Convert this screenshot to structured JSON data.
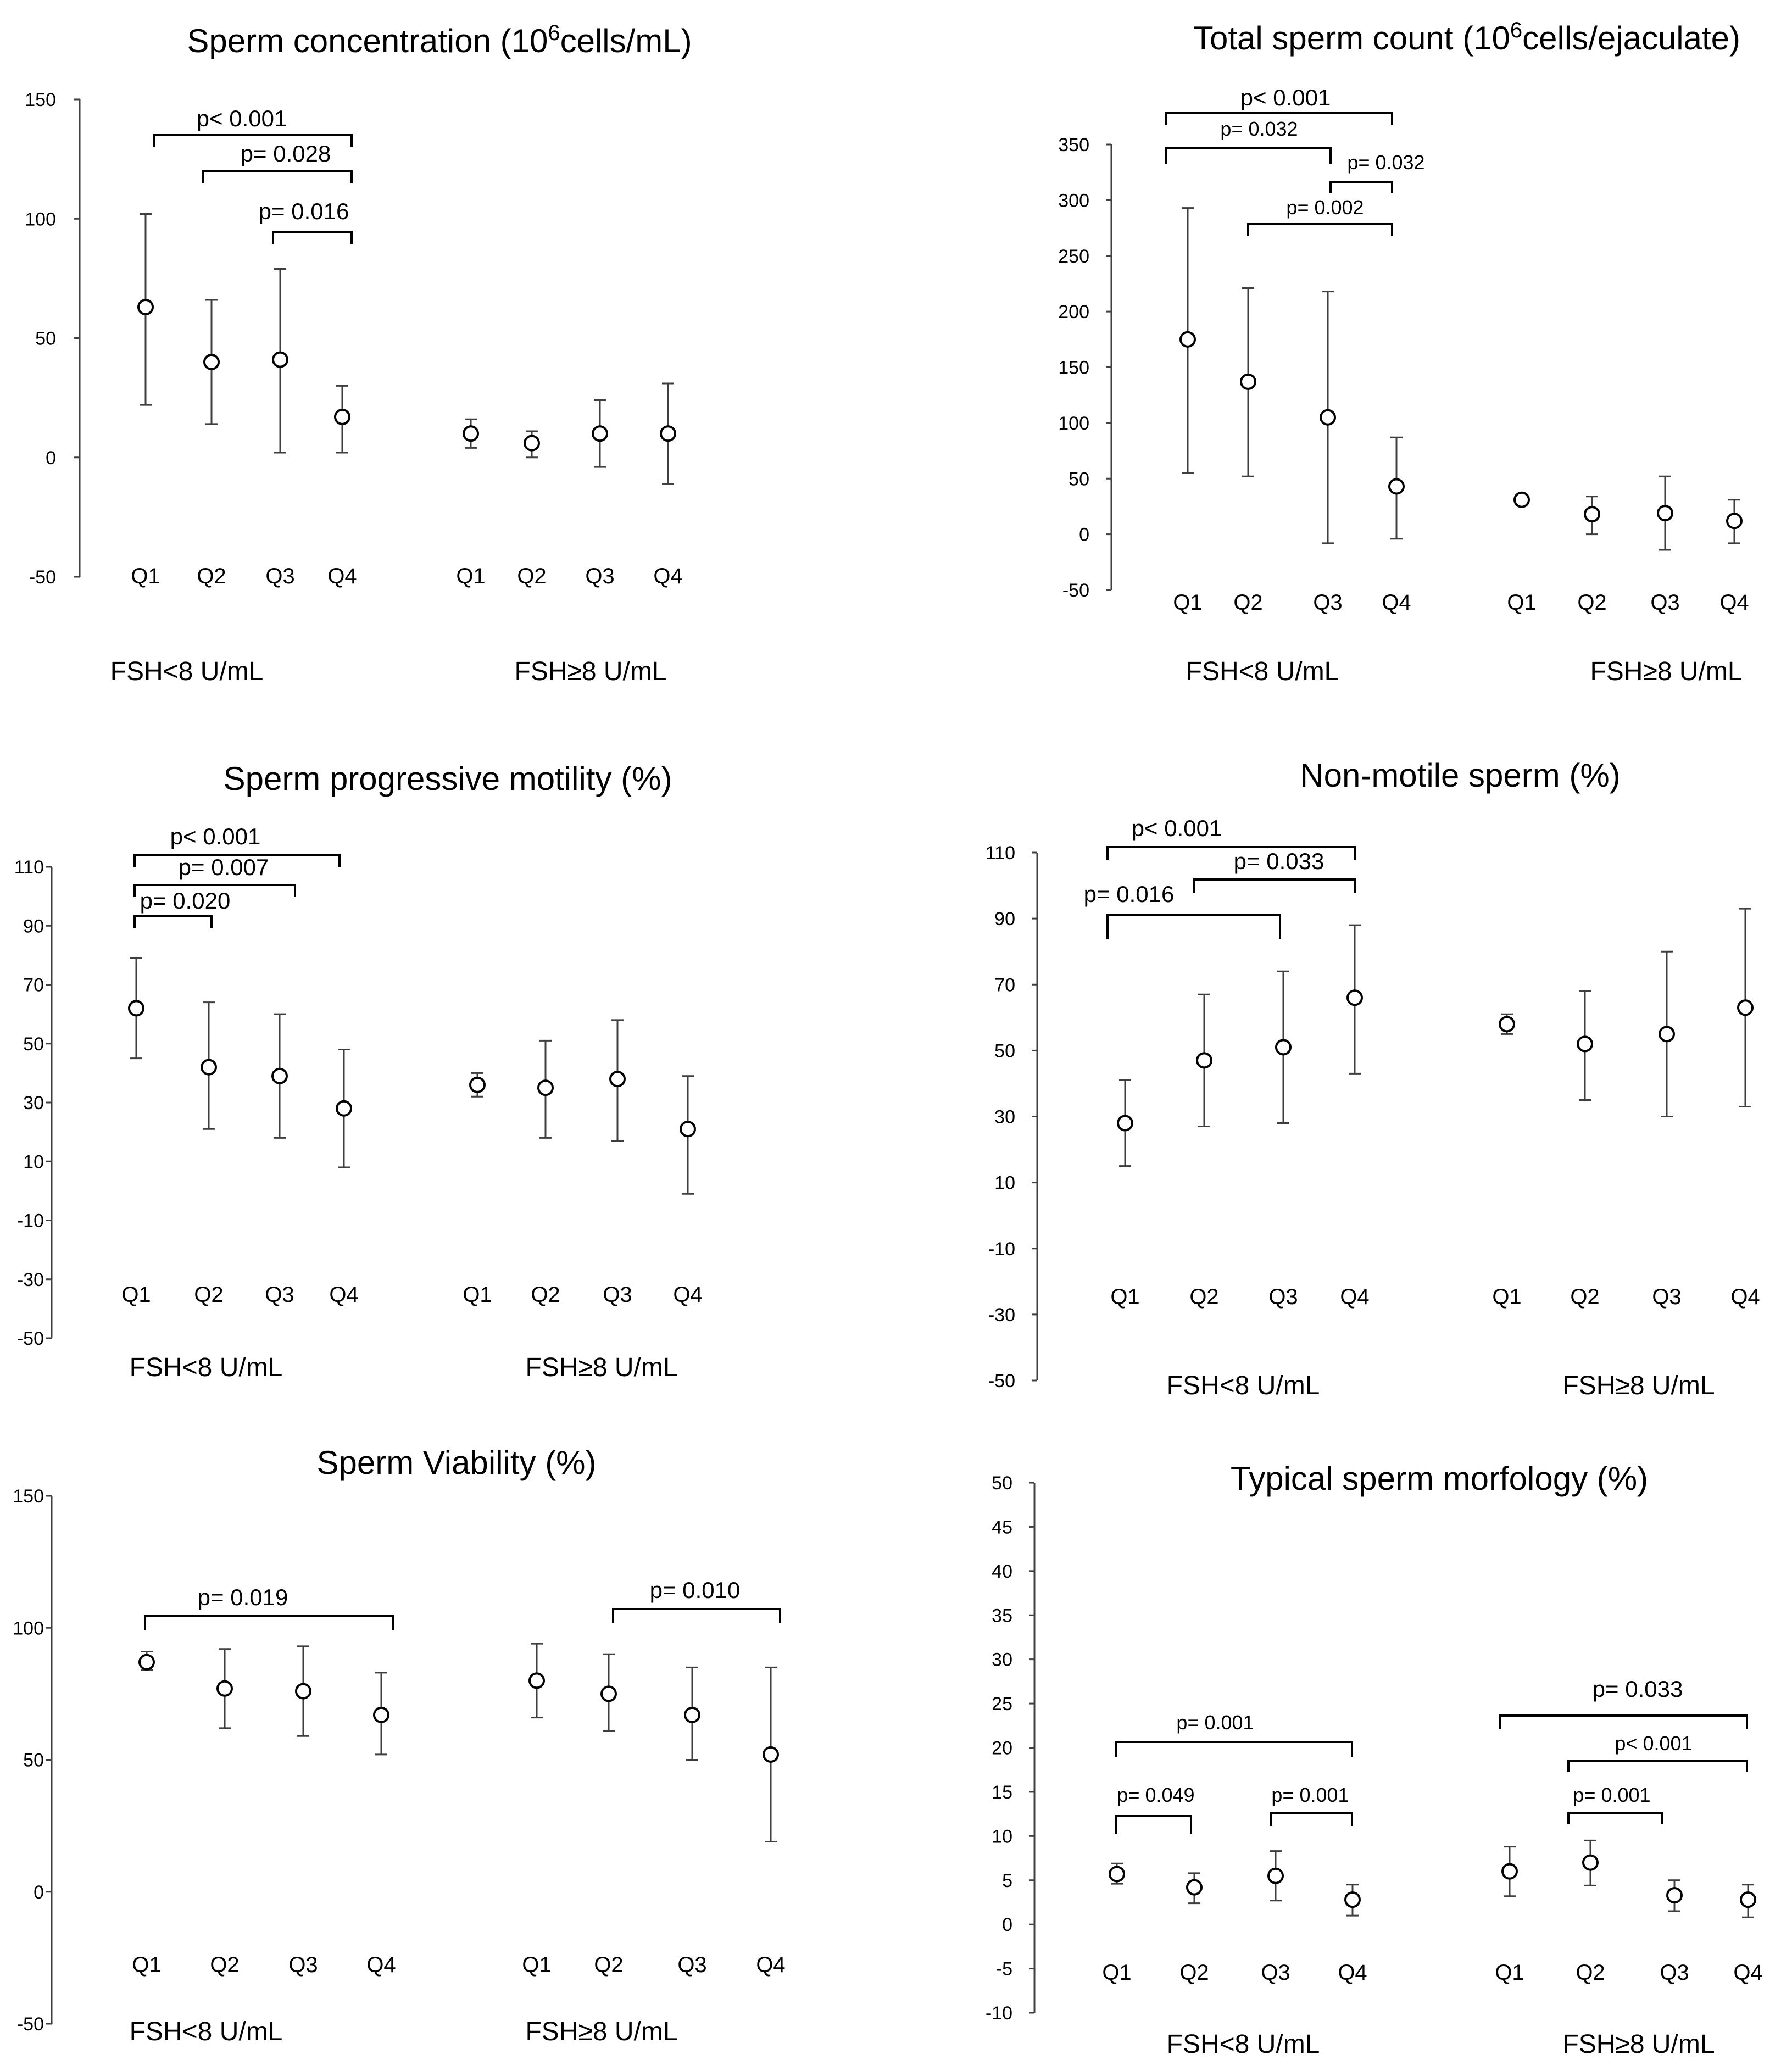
{
  "figure": {
    "colors": {
      "ink": "#000000",
      "axis": "#404040",
      "errorbar": "#3f3f3f",
      "marker_fill": "#ffffff",
      "background": "#ffffff"
    }
  },
  "chart_data": [
    {
      "id": "conc",
      "type": "scatter",
      "title": "Sperm concentration (10⁶cells/mL)",
      "xlabel": "",
      "ylabel": "",
      "ylim": [
        -50,
        150
      ],
      "yticks": [
        -50,
        0,
        50,
        100,
        150
      ],
      "grid": false,
      "groups": [
        {
          "label": "FSH<8 U/mL",
          "categories": [
            "Q1",
            "Q2",
            "Q3",
            "Q4"
          ],
          "mean": [
            63,
            40,
            41,
            17
          ],
          "lower": [
            22,
            14,
            2,
            2
          ],
          "upper": [
            102,
            66,
            79,
            30
          ]
        },
        {
          "label": "FSH≥8 U/mL",
          "categories": [
            "Q1",
            "Q2",
            "Q3",
            "Q4"
          ],
          "mean": [
            10,
            6,
            10,
            10
          ],
          "lower": [
            4,
            0,
            -4,
            -11
          ],
          "upper": [
            16,
            11,
            24,
            31
          ]
        }
      ],
      "comparisons": [
        {
          "text": "p< 0.001",
          "size": "normal"
        },
        {
          "text": "p= 0.028",
          "size": "normal"
        },
        {
          "text": "p= 0.016",
          "size": "normal"
        }
      ]
    },
    {
      "id": "total",
      "type": "scatter",
      "title": "Total sperm count (10⁶cells/ejaculate)",
      "xlabel": "",
      "ylabel": "",
      "ylim": [
        -50,
        350
      ],
      "yticks": [
        -50,
        0,
        50,
        100,
        150,
        200,
        250,
        300,
        350
      ],
      "grid": false,
      "groups": [
        {
          "label": "FSH<8 U/mL",
          "categories": [
            "Q1",
            "Q2",
            "Q3",
            "Q4"
          ],
          "mean": [
            175,
            137,
            105,
            43
          ],
          "lower": [
            55,
            52,
            -8,
            -4
          ],
          "upper": [
            293,
            221,
            218,
            87
          ]
        },
        {
          "label": "FSH≥8 U/mL",
          "categories": [
            "Q1",
            "Q2",
            "Q3",
            "Q4"
          ],
          "mean": [
            31,
            18,
            19,
            12
          ],
          "lower": [
            31,
            0,
            -14,
            -8
          ],
          "upper": [
            31,
            34,
            52,
            31
          ]
        }
      ],
      "comparisons": [
        {
          "text": "p< 0.001",
          "size": "normal"
        },
        {
          "text": "p= 0.032",
          "size": "small"
        },
        {
          "text": "p= 0.032",
          "size": "small"
        },
        {
          "text": "p= 0.002",
          "size": "small"
        }
      ]
    },
    {
      "id": "prog",
      "type": "scatter",
      "title": "Sperm progressive motility (%)",
      "xlabel": "",
      "ylabel": "",
      "ylim": [
        -50,
        110
      ],
      "yticks": [
        -50,
        -30,
        -10,
        10,
        30,
        50,
        70,
        90,
        110
      ],
      "grid": false,
      "groups": [
        {
          "label": "FSH<8 U/mL",
          "categories": [
            "Q1",
            "Q2",
            "Q3",
            "Q4"
          ],
          "mean": [
            62,
            42,
            39,
            28
          ],
          "lower": [
            45,
            21,
            18,
            8
          ],
          "upper": [
            79,
            64,
            60,
            48
          ]
        },
        {
          "label": "FSH≥8 U/mL",
          "categories": [
            "Q1",
            "Q2",
            "Q3",
            "Q4"
          ],
          "mean": [
            36,
            35,
            38,
            21
          ],
          "lower": [
            32,
            18,
            17,
            -1
          ],
          "upper": [
            40,
            51,
            58,
            39
          ]
        }
      ],
      "comparisons": [
        {
          "text": "p< 0.001",
          "size": "normal"
        },
        {
          "text": "p= 0.007",
          "size": "normal"
        },
        {
          "text": "p= 0.020",
          "size": "normal"
        }
      ]
    },
    {
      "id": "nonmot",
      "type": "scatter",
      "title": "Non-motile sperm (%)",
      "xlabel": "",
      "ylabel": "",
      "ylim": [
        -50,
        110
      ],
      "yticks": [
        -50,
        -30,
        -10,
        10,
        30,
        50,
        70,
        90,
        110
      ],
      "grid": false,
      "groups": [
        {
          "label": "FSH<8 U/mL",
          "categories": [
            "Q1",
            "Q2",
            "Q3",
            "Q4"
          ],
          "mean": [
            28,
            47,
            51,
            66
          ],
          "lower": [
            15,
            27,
            28,
            43
          ],
          "upper": [
            41,
            67,
            74,
            88
          ]
        },
        {
          "label": "FSH≥8 U/mL",
          "categories": [
            "Q1",
            "Q2",
            "Q3",
            "Q4"
          ],
          "mean": [
            58,
            52,
            55,
            63
          ],
          "lower": [
            55,
            35,
            30,
            33
          ],
          "upper": [
            61,
            68,
            80,
            93
          ]
        }
      ],
      "comparisons": [
        {
          "text": "p< 0.001",
          "size": "normal"
        },
        {
          "text": "p= 0.033",
          "size": "normal"
        },
        {
          "text": "p= 0.016",
          "size": "normal"
        }
      ]
    },
    {
      "id": "viab",
      "type": "scatter",
      "title": "Sperm Viability (%)",
      "xlabel": "",
      "ylabel": "",
      "ylim": [
        -50,
        150
      ],
      "yticks": [
        -50,
        0,
        50,
        100,
        150
      ],
      "grid": false,
      "groups": [
        {
          "label": "FSH<8 U/mL",
          "categories": [
            "Q1",
            "Q2",
            "Q3",
            "Q4"
          ],
          "mean": [
            87,
            77,
            76,
            67
          ],
          "lower": [
            84,
            62,
            59,
            52
          ],
          "upper": [
            91,
            92,
            93,
            83
          ]
        },
        {
          "label": "FSH≥8 U/mL",
          "categories": [
            "Q1",
            "Q2",
            "Q3",
            "Q4"
          ],
          "mean": [
            80,
            75,
            67,
            52
          ],
          "lower": [
            66,
            61,
            50,
            19
          ],
          "upper": [
            94,
            90,
            85,
            85
          ]
        }
      ],
      "comparisons": [
        {
          "text": "p= 0.019",
          "size": "normal"
        },
        {
          "text": "p= 0.010",
          "size": "normal"
        }
      ]
    },
    {
      "id": "morph",
      "type": "scatter",
      "title": "Typical sperm morfology (%)",
      "xlabel": "",
      "ylabel": "",
      "ylim": [
        -10,
        50
      ],
      "yticks": [
        -10,
        -5,
        0,
        5,
        10,
        15,
        20,
        25,
        30,
        35,
        40,
        45,
        50
      ],
      "grid": false,
      "groups": [
        {
          "label": "FSH<8 U/mL",
          "categories": [
            "Q1",
            "Q2",
            "Q3",
            "Q4"
          ],
          "mean": [
            5.7,
            4.2,
            5.5,
            2.8
          ],
          "lower": [
            4.6,
            2.4,
            2.7,
            1.0
          ],
          "upper": [
            6.9,
            5.8,
            8.3,
            4.5
          ]
        },
        {
          "label": "FSH≥8 U/mL",
          "categories": [
            "Q1",
            "Q2",
            "Q3",
            "Q4"
          ],
          "mean": [
            6.0,
            7.0,
            3.3,
            2.8
          ],
          "lower": [
            3.2,
            4.4,
            1.5,
            0.8
          ],
          "upper": [
            8.8,
            9.5,
            5.0,
            4.5
          ]
        }
      ],
      "comparisons": [
        {
          "text": "p= 0.001",
          "size": "small"
        },
        {
          "text": "p= 0.049",
          "size": "small"
        },
        {
          "text": "p= 0.001",
          "size": "small"
        },
        {
          "text": "p= 0.033",
          "size": "normal"
        },
        {
          "text": "p< 0.001",
          "size": "small"
        },
        {
          "text": "p= 0.001",
          "size": "small"
        }
      ]
    }
  ]
}
